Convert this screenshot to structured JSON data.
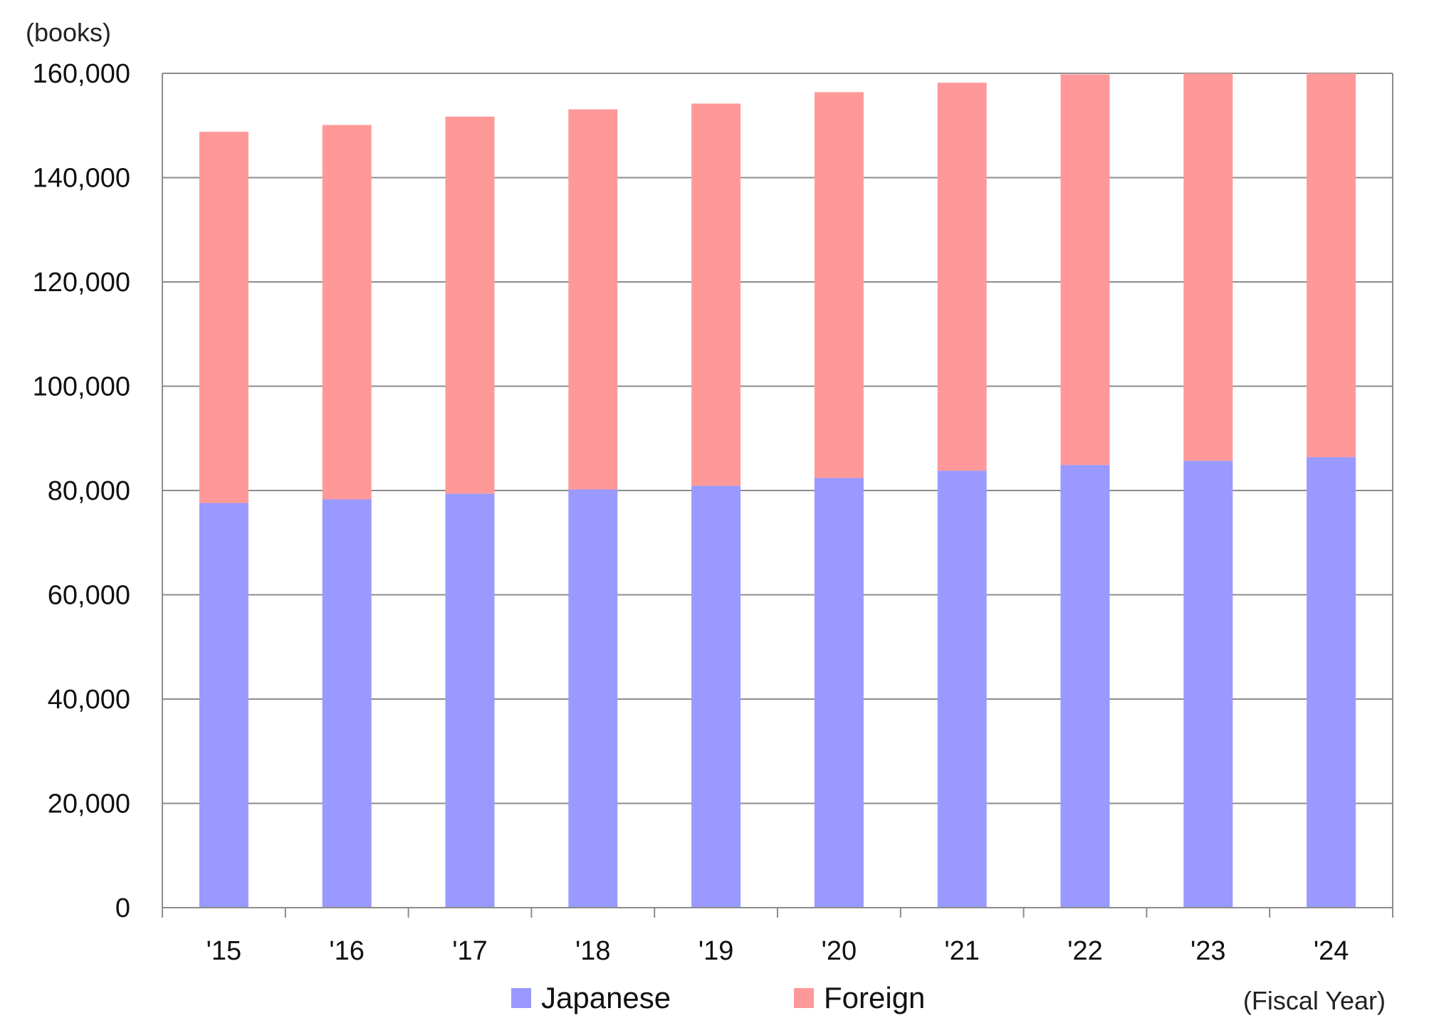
{
  "chart_data": {
    "type": "bar",
    "stacked": true,
    "ylabel": "(books)",
    "xlabel": "(Fiscal Year)",
    "categories": [
      "'15",
      "'16",
      "'17",
      "'18",
      "'19",
      "'20",
      "'21",
      "'22",
      "'23",
      "'24"
    ],
    "series": [
      {
        "name": "Japanese",
        "color": "#9999ff",
        "values": [
          77600,
          78300,
          79400,
          80200,
          80900,
          82400,
          83800,
          84900,
          85700,
          86400
        ]
      },
      {
        "name": "Foreign",
        "color": "#ff9999",
        "values": [
          71200,
          71800,
          72300,
          72900,
          73300,
          74000,
          74400,
          74900,
          74300,
          73600
        ]
      }
    ],
    "ylim": [
      0,
      160000
    ],
    "yticks": [
      0,
      20000,
      40000,
      60000,
      80000,
      100000,
      120000,
      140000,
      160000
    ],
    "ytick_labels": [
      "0",
      "20,000",
      "40,000",
      "60,000",
      "80,000",
      "100,000",
      "120,000",
      "140,000",
      "160,000"
    ],
    "grid": true,
    "legend_position": "bottom-center"
  }
}
